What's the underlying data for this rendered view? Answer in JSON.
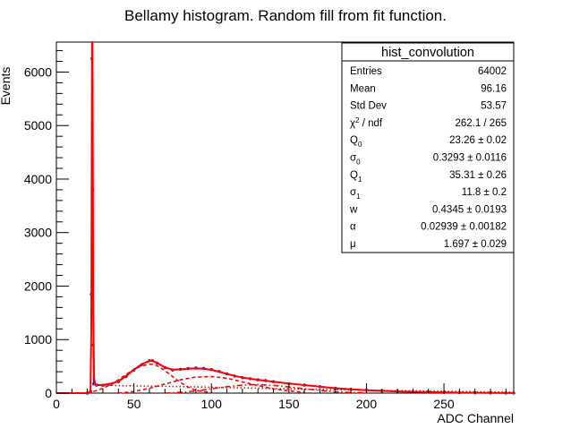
{
  "chart_data": {
    "type": "histogram",
    "title": "Bellamy histogram. Random fill from fit function.",
    "xlabel": "ADC Channel",
    "ylabel": "Events",
    "xlim": [
      0,
      295
    ],
    "ylim": [
      0,
      6560
    ],
    "x_ticks": [
      0,
      50,
      100,
      150,
      200,
      250
    ],
    "y_ticks": [
      0,
      1000,
      2000,
      3000,
      4000,
      5000,
      6000
    ],
    "grid": false,
    "stats_box": {
      "title": "hist_convolution",
      "rows": [
        {
          "label": "Entries",
          "sub": "",
          "sup": "",
          "rest": "",
          "value": "64002"
        },
        {
          "label": "Mean",
          "sub": "",
          "sup": "",
          "rest": "",
          "value": "96.16"
        },
        {
          "label": "Std Dev",
          "sub": "",
          "sup": "",
          "rest": "",
          "value": "53.57"
        },
        {
          "label": "χ",
          "sub": "",
          "sup": "2",
          "rest": " / ndf",
          "value": "262.1 / 265"
        },
        {
          "label": "Q",
          "sub": "0",
          "sup": "",
          "rest": "",
          "value": "23.26 ± 0.02"
        },
        {
          "label": "σ",
          "sub": "0",
          "sup": "",
          "rest": "",
          "value": "0.3293 ± 0.0116"
        },
        {
          "label": "Q",
          "sub": "1",
          "sup": "",
          "rest": "",
          "value": "35.31 ± 0.26"
        },
        {
          "label": "σ",
          "sub": "1",
          "sup": "",
          "rest": "",
          "value": "11.8 ± 0.2"
        },
        {
          "label": "w",
          "sub": "",
          "sup": "",
          "rest": "",
          "value": "0.4345 ± 0.0193"
        },
        {
          "label": "α",
          "sub": "",
          "sup": "",
          "rest": "",
          "value": "0.02939 ± 0.00182"
        },
        {
          "label": "μ",
          "sub": "",
          "sup": "",
          "rest": "",
          "value": "1.697 ± 0.029"
        }
      ]
    },
    "histogram": {
      "color": "#1a1a8c",
      "x": [
        20,
        22,
        22.6,
        23,
        23.3,
        23.7,
        24,
        26,
        30,
        35,
        40,
        45,
        50,
        55,
        60,
        62,
        65,
        70,
        75,
        80,
        85,
        90,
        95,
        100,
        105,
        110,
        115,
        120,
        125,
        130,
        135,
        140,
        150,
        160,
        170,
        180,
        190,
        200,
        210,
        220,
        230,
        240,
        250,
        260,
        270,
        280,
        290,
        295
      ],
      "y": [
        0,
        30,
        1850,
        6250,
        3800,
        900,
        170,
        150,
        145,
        165,
        215,
        310,
        430,
        530,
        605,
        605,
        560,
        475,
        430,
        445,
        460,
        470,
        462,
        440,
        405,
        360,
        320,
        290,
        270,
        250,
        235,
        215,
        178,
        150,
        120,
        90,
        72,
        55,
        42,
        32,
        24,
        18,
        12,
        8,
        5,
        3,
        2,
        1
      ]
    },
    "series": [
      {
        "style": "solid",
        "color": "#ff0000",
        "x": [
          0,
          20,
          22,
          22.5,
          22.8,
          23,
          23.26,
          23.5,
          23.8,
          24.3,
          25,
          27,
          30,
          35,
          40,
          45,
          50,
          55,
          60,
          62,
          65,
          70,
          75,
          80,
          85,
          90,
          95,
          100,
          105,
          110,
          115,
          120,
          125,
          130,
          140,
          150,
          160,
          170,
          180,
          190,
          200,
          220,
          240,
          260,
          280,
          295
        ],
        "y": [
          0,
          0,
          10,
          1200,
          4500,
          6560,
          6560,
          4600,
          1500,
          300,
          160,
          150,
          155,
          175,
          225,
          320,
          440,
          540,
          600,
          605,
          565,
          480,
          440,
          445,
          455,
          460,
          455,
          435,
          400,
          360,
          322,
          292,
          270,
          250,
          215,
          180,
          150,
          120,
          92,
          72,
          55,
          32,
          18,
          8,
          3,
          1
        ]
      },
      {
        "style": "dashed",
        "color": "#ff0000",
        "x": [
          20,
          25,
          30,
          35,
          40,
          45,
          50,
          55,
          60,
          62,
          65,
          70,
          75,
          80,
          85,
          90,
          100
        ],
        "y": [
          0,
          40,
          90,
          160,
          250,
          350,
          440,
          510,
          540,
          540,
          510,
          420,
          310,
          200,
          110,
          50,
          10
        ]
      },
      {
        "style": "dashed",
        "color": "#ff0000",
        "x": [
          40,
          50,
          60,
          70,
          80,
          90,
          100,
          110,
          120,
          130,
          140,
          150,
          160
        ],
        "y": [
          0,
          30,
          90,
          170,
          250,
          300,
          310,
          280,
          210,
          140,
          80,
          40,
          15
        ]
      },
      {
        "style": "dotted",
        "color": "#ff0000",
        "x": [
          24,
          30,
          40,
          60,
          80,
          100,
          120,
          140,
          160,
          180,
          200,
          220,
          240,
          260,
          280,
          295
        ],
        "y": [
          160,
          150,
          140,
          130,
          122,
          110,
          98,
          86,
          76,
          66,
          56,
          46,
          38,
          30,
          22,
          18
        ]
      },
      {
        "style": "dashdot",
        "color": "#ff0000",
        "x": [
          70,
          80,
          90,
          100,
          110,
          120,
          130,
          140,
          150,
          160,
          170,
          180,
          190,
          200
        ],
        "y": [
          0,
          15,
          40,
          80,
          120,
          150,
          160,
          145,
          115,
          80,
          50,
          25,
          12,
          5
        ]
      }
    ]
  }
}
